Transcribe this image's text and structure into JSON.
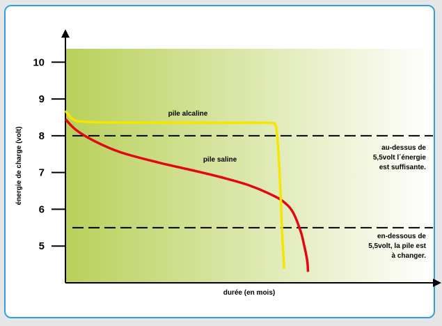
{
  "colors": {
    "frame_border": "#2ba3d8",
    "gradient_start": "#b9d05a",
    "gradient_end": "#ffffff",
    "alkaline_line": "#f5e600",
    "saline_line": "#e30613"
  },
  "chart_data": {
    "type": "line",
    "title": "",
    "xlabel": "durée (en mois)",
    "ylabel": "énergie de charge (volt)",
    "ylim": [
      4.0,
      10.65
    ],
    "y_ticks": [
      "5",
      "6",
      "7",
      "8",
      "9",
      "10"
    ],
    "x_ticks": [],
    "grid": false,
    "thresholds": [
      {
        "y": 8.0,
        "style": "dashed",
        "annotation": [
          "au-dessus de",
          "5,5volt l´énergie",
          "est suffisante."
        ]
      },
      {
        "y": 5.5,
        "style": "dashed",
        "annotation": [
          "en-dessous de",
          "5,5volt, la pile est",
          "à changer."
        ]
      }
    ],
    "series": [
      {
        "name": "pile alcaline",
        "color": "#f5e600",
        "x": [
          0,
          0.02,
          0.05,
          0.15,
          0.4,
          0.55,
          0.57,
          0.575,
          0.58,
          0.585,
          0.59,
          0.595
        ],
        "y": [
          8.68,
          8.45,
          8.38,
          8.36,
          8.35,
          8.35,
          8.3,
          8.1,
          7.5,
          6.5,
          5.3,
          4.38
        ]
      },
      {
        "name": "pile saline",
        "color": "#e30613",
        "x": [
          0,
          0.03,
          0.08,
          0.15,
          0.25,
          0.35,
          0.42,
          0.5,
          0.57,
          0.6,
          0.62,
          0.64,
          0.65,
          0.658,
          0.66
        ],
        "y": [
          8.45,
          8.15,
          7.85,
          7.55,
          7.28,
          7.05,
          6.88,
          6.65,
          6.35,
          6.15,
          5.9,
          5.4,
          5.0,
          4.6,
          4.3
        ]
      }
    ]
  }
}
